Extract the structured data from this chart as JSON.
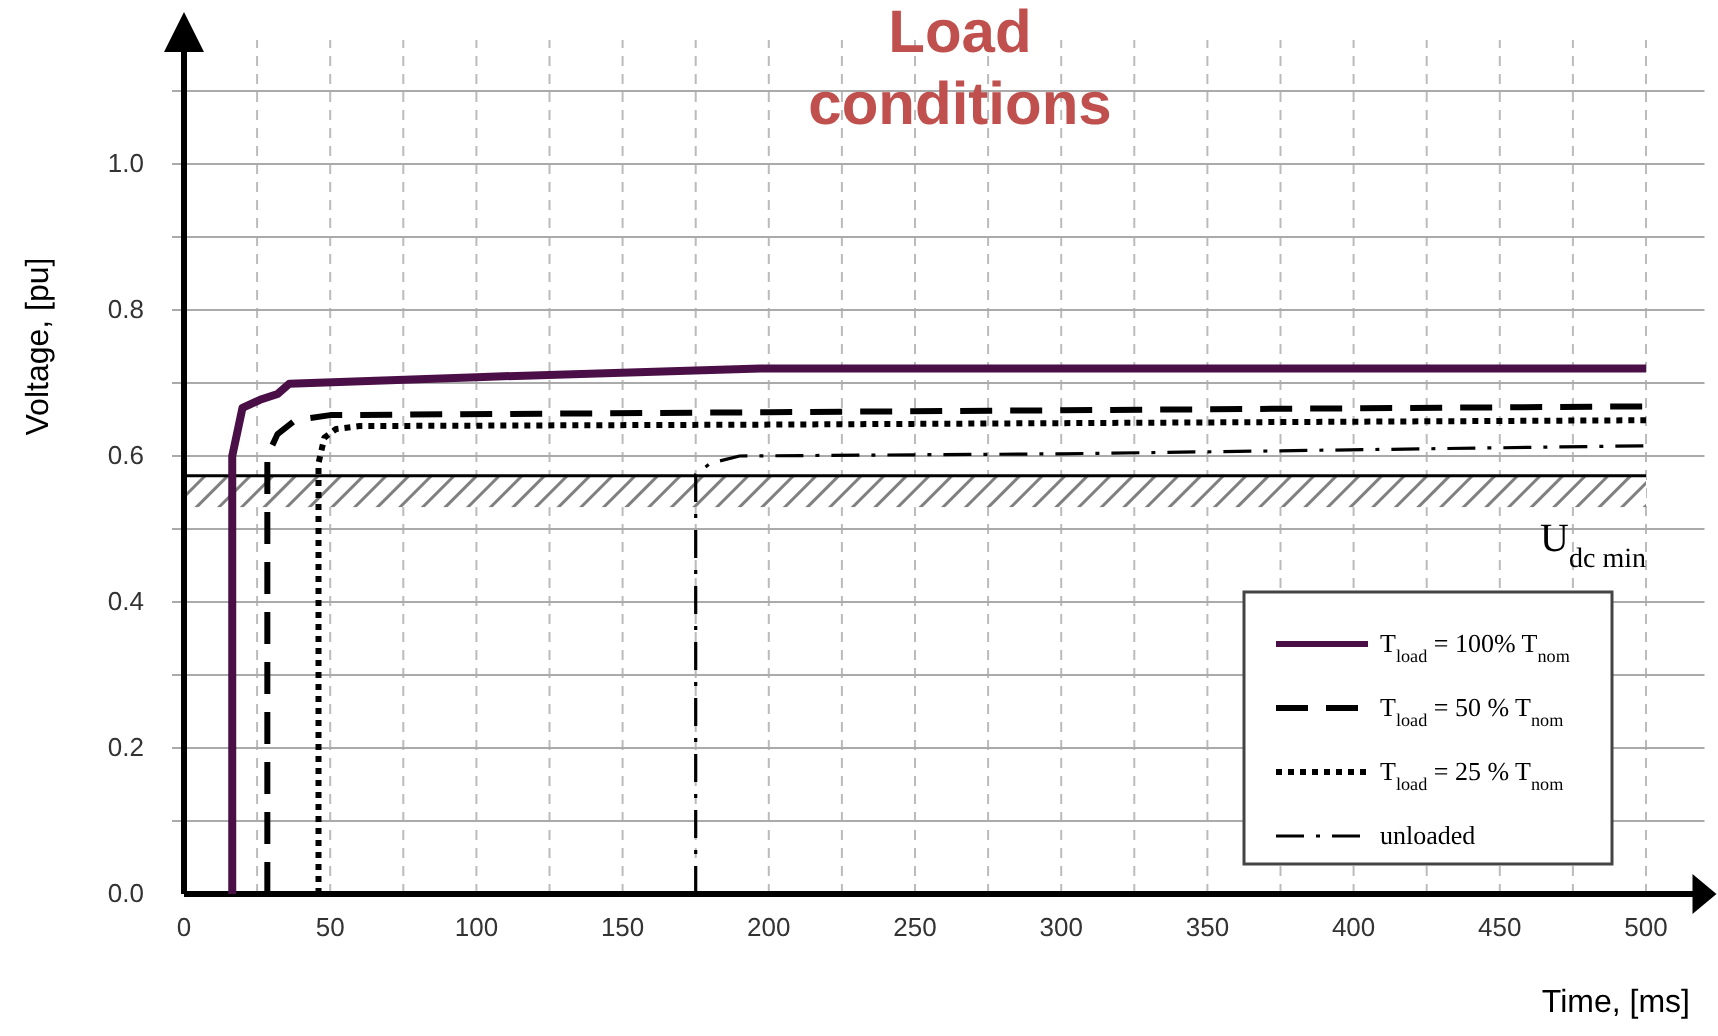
{
  "chart_data": {
    "type": "line",
    "title": "Load conditions",
    "xlabel": "Time, [ms]",
    "ylabel": "Voltage, [pu]",
    "xlim": [
      0,
      520
    ],
    "ylim": [
      0,
      1.17
    ],
    "xticks": [
      0,
      {
        "value": 25,
        "label": null
      },
      50,
      {
        "value": 75,
        "label": null
      },
      100,
      {
        "value": 125,
        "label": null
      },
      150,
      {
        "value": 175,
        "label": null
      },
      200,
      {
        "value": 225,
        "label": null
      },
      250,
      {
        "value": 275,
        "label": null
      },
      300,
      {
        "value": 325,
        "label": null
      },
      350,
      {
        "value": 375,
        "label": null
      },
      400,
      {
        "value": 425,
        "label": null
      },
      450,
      {
        "value": 475,
        "label": null
      },
      500
    ],
    "yticks": [
      {
        "value": 0,
        "label": "0.0"
      },
      {
        "value": 0.1,
        "label": null
      },
      0.2,
      {
        "value": 0.3,
        "label": null
      },
      0.4,
      {
        "value": 0.5,
        "label": null
      },
      0.6,
      {
        "value": 0.7,
        "label": null
      },
      0.8,
      {
        "value": 0.9,
        "label": null
      },
      {
        "value": 1.0,
        "label": "1.0"
      },
      {
        "value": 1.1,
        "label": null
      }
    ],
    "grid": true,
    "legend": "bottom right",
    "marker": "none",
    "series": [
      {
        "name": "T$_{load}$ = 100% T$_{nom}$",
        "color": "#4b0f47",
        "line_style": "solid",
        "x": [
          16.5,
          16.5,
          20,
          26,
          32,
          36,
          100,
          197,
          500
        ],
        "values": [
          0,
          0.6,
          0.666,
          0.677,
          0.685,
          0.699,
          0.708,
          0.72,
          0.72
        ]
      },
      {
        "name": "T$_{load}$ = 50 % T$_{nom}$",
        "color": "#000000",
        "line_style": "dashed",
        "x": [
          28.5,
          28.5,
          32,
          38,
          50,
          200,
          500
        ],
        "values": [
          0,
          0.6,
          0.63,
          0.649,
          0.656,
          0.66,
          0.668
        ]
      },
      {
        "name": "T$_{load}$ = 25 % T$_{nom}$",
        "color": "#000000",
        "line_style": "dotted",
        "x": [
          46,
          46,
          48,
          52,
          60,
          200,
          500
        ],
        "values": [
          0,
          0.59,
          0.625,
          0.637,
          0.641,
          0.643,
          0.649
        ]
      },
      {
        "name": "unloaded",
        "color": "#000000",
        "line_style": "dashdot",
        "x": [
          175,
          175,
          180,
          190,
          300,
          500
        ],
        "values": [
          0,
          0.575,
          0.59,
          0.6,
          0.603,
          0.614
        ]
      }
    ],
    "ref_lines": [
      {
        "axis": "y",
        "value": 0.573,
        "color": "#000000"
      }
    ],
    "bands": [
      {
        "axis": "y",
        "from": 0.53,
        "to": 0.573,
        "label": "U$_{dc min}$",
        "color": "#808080"
      }
    ]
  }
}
